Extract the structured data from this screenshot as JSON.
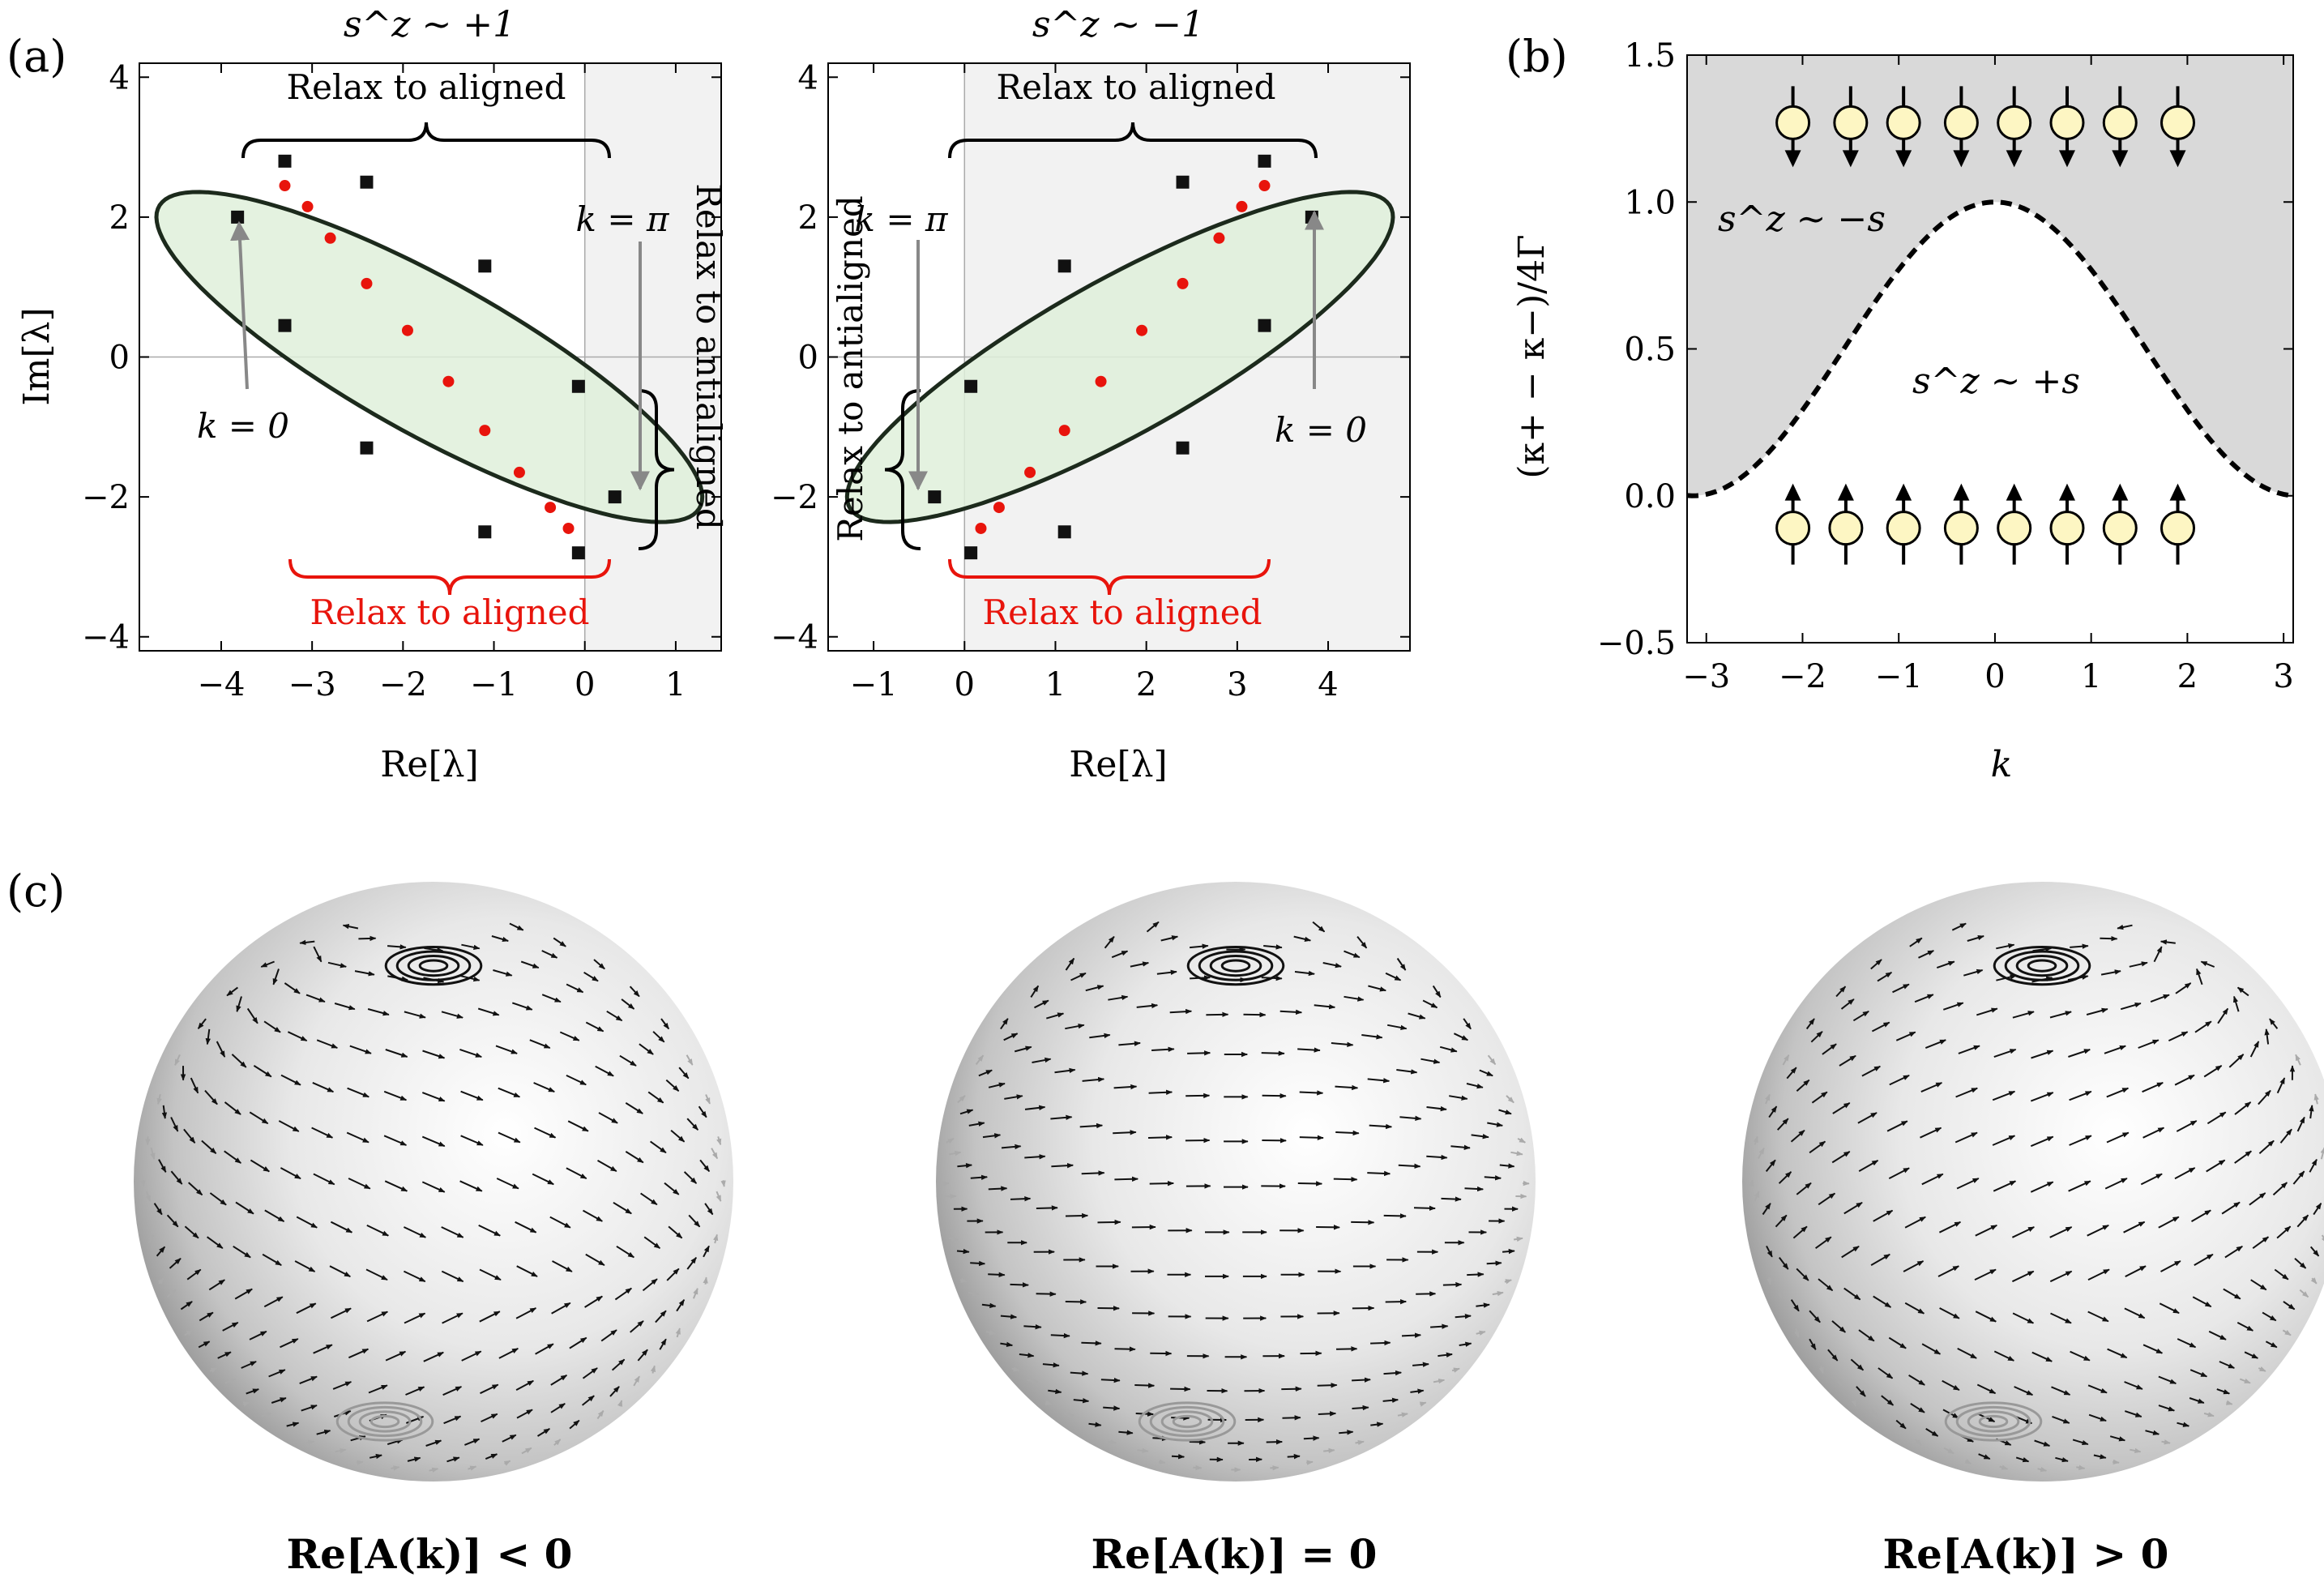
{
  "panel_labels": {
    "a": "(a)",
    "b": "(b)",
    "c": "(c)"
  },
  "colors": {
    "red": "#e8140c",
    "ellipse_fill": "#dff0da",
    "shade": "#f2f2f2",
    "shade_b": "#d9d9d9",
    "arrow_gray": "#888888"
  },
  "chart_data": [
    {
      "id": "a_left",
      "type": "scatter",
      "title": "s^z ~ +1",
      "xlabel": "Re[λ]",
      "ylabel": "Im[λ]",
      "xlim": [
        -4.9,
        1.5
      ],
      "ylim": [
        -4.2,
        4.2
      ],
      "xticks": [
        -4,
        -3,
        -2,
        -1,
        0,
        1
      ],
      "yticks": [
        -4,
        -2,
        0,
        2,
        4
      ],
      "xtick_labels": [
        "−4",
        "−3",
        "−2",
        "−1",
        "0",
        "1"
      ],
      "ytick_labels": [
        "−4",
        "−2",
        "0",
        "2",
        "4"
      ],
      "shaded_region": "Re[λ] > 0",
      "ellipse": {
        "center": [
          -1.71,
          0.0
        ],
        "semi_major": 3.68,
        "semi_minor": 1.02,
        "angle_deg": -37
      },
      "series": [
        {
          "name": "finite-size eigenvalues",
          "color": "red",
          "x": [
            -3.3,
            -3.05,
            -2.8,
            -2.4,
            -1.95,
            -1.5,
            -1.1,
            -0.72,
            -0.38,
            -0.18
          ],
          "y": [
            2.45,
            2.15,
            1.7,
            1.05,
            0.38,
            -0.35,
            -1.05,
            -1.65,
            -2.15,
            -2.45
          ]
        },
        {
          "name": "square markers (ellipse)",
          "color": "black",
          "x": [
            -3.82,
            -3.3,
            -2.4,
            -1.1,
            -0.07,
            0.33,
            -0.07,
            -1.1,
            -2.4,
            -3.3
          ],
          "y": [
            2.0,
            2.8,
            2.5,
            1.3,
            -0.42,
            -2.0,
            -2.8,
            -2.5,
            -1.3,
            0.45
          ]
        }
      ],
      "annotations": {
        "top_brace": "Relax to aligned",
        "bottom_brace": "Relax to aligned",
        "right_brace": "Relax to antialigned",
        "k0": "k = 0",
        "kpi": "k = π"
      }
    },
    {
      "id": "a_right",
      "type": "scatter",
      "title": "s^z ~ −1",
      "xlabel": "Re[λ]",
      "ylabel": "",
      "xlim": [
        -1.5,
        4.9
      ],
      "ylim": [
        -4.2,
        4.2
      ],
      "xticks": [
        -1,
        0,
        1,
        2,
        3,
        4
      ],
      "yticks": [
        -4,
        -2,
        0,
        2,
        4
      ],
      "xtick_labels": [
        "−1",
        "0",
        "1",
        "2",
        "3",
        "4"
      ],
      "ytick_labels": [
        "−4",
        "−2",
        "0",
        "2",
        "4"
      ],
      "shaded_region": "Re[λ] > 0",
      "ellipse": {
        "center": [
          1.71,
          0.0
        ],
        "semi_major": 3.68,
        "semi_minor": 1.02,
        "angle_deg": 37
      },
      "series": [
        {
          "name": "finite-size eigenvalues",
          "color": "red",
          "x": [
            0.18,
            0.38,
            0.72,
            1.1,
            1.5,
            1.95,
            2.4,
            2.8,
            3.05,
            3.3
          ],
          "y": [
            -2.45,
            -2.15,
            -1.65,
            -1.05,
            -0.35,
            0.38,
            1.05,
            1.7,
            2.15,
            2.45
          ]
        },
        {
          "name": "square markers (ellipse)",
          "color": "black",
          "x": [
            3.82,
            3.3,
            2.4,
            1.1,
            0.07,
            -0.33,
            0.07,
            1.1,
            2.4,
            3.3
          ],
          "y": [
            2.0,
            2.8,
            2.5,
            1.3,
            -0.42,
            -2.0,
            -2.8,
            -2.5,
            -1.3,
            0.45
          ]
        }
      ],
      "annotations": {
        "top_brace": "Relax to aligned",
        "bottom_brace": "Relax to aligned",
        "left_brace": "Relax to antialigned",
        "k0": "k = 0",
        "kpi": "k = π"
      }
    },
    {
      "id": "b",
      "type": "line",
      "xlabel": "k",
      "ylabel": "(κ+ − κ−)/4Γ",
      "xlim": [
        -3.2,
        3.1
      ],
      "ylim": [
        -0.5,
        1.5
      ],
      "xticks": [
        -3,
        -2,
        -1,
        0,
        1,
        2,
        3
      ],
      "yticks": [
        -0.5,
        0.0,
        0.5,
        1.0,
        1.5
      ],
      "xtick_labels": [
        "−3",
        "−2",
        "−1",
        "0",
        "1",
        "2",
        "3"
      ],
      "ytick_labels": [
        "−0.5",
        "0.0",
        "0.5",
        "1.0",
        "1.5"
      ],
      "series": [
        {
          "name": "boundary (1 + cos k)/2",
          "style": "dashed",
          "x": [
            -3.14,
            -2.5,
            -2.0,
            -1.5,
            -1.0,
            -0.5,
            0.0,
            0.5,
            1.0,
            1.5,
            2.0,
            2.5,
            3.0
          ],
          "y": [
            0.0,
            0.1,
            0.29,
            0.54,
            0.77,
            0.94,
            1.0,
            0.94,
            0.77,
            0.54,
            0.29,
            0.1,
            0.005
          ]
        }
      ],
      "region_labels": {
        "upper": "s^z ~ −s",
        "lower": "s^z ~ +s"
      },
      "spins_down_x": [
        -2.1,
        -1.5,
        -0.95,
        -0.35,
        0.2,
        0.75,
        1.3,
        1.9
      ],
      "spins_up_x": [
        -2.1,
        -1.55,
        -0.95,
        -0.35,
        0.2,
        0.75,
        1.3,
        1.9
      ]
    }
  ],
  "spheres": [
    {
      "caption": "Re[A(k)] < 0"
    },
    {
      "caption": "Re[A(k)] = 0"
    },
    {
      "caption": "Re[A(k)] > 0"
    }
  ]
}
